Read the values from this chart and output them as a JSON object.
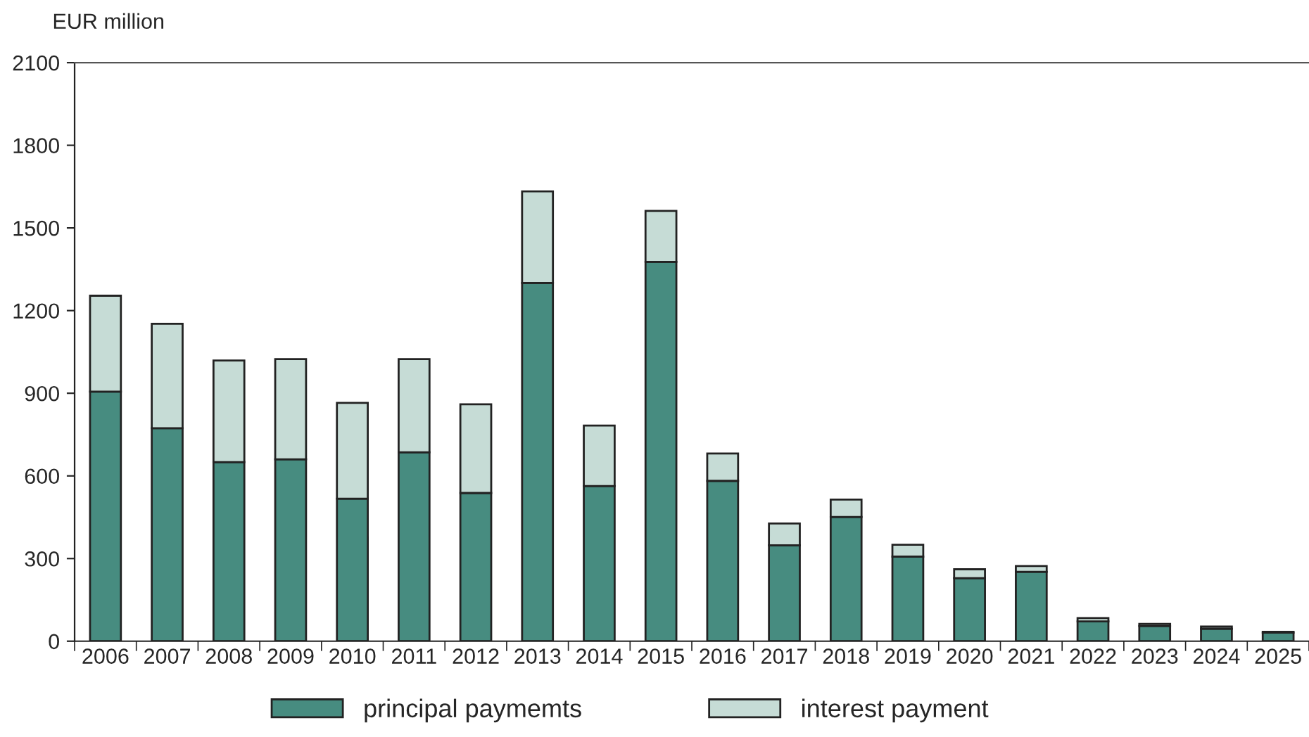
{
  "chart_data": {
    "type": "bar",
    "ylabel": "EUR million",
    "stacked": true,
    "categories": [
      "2006",
      "2007",
      "2008",
      "2009",
      "2010",
      "2011",
      "2012",
      "2013",
      "2014",
      "2015",
      "2016",
      "2017",
      "2018",
      "2019",
      "2020",
      "2021",
      "2022",
      "2023",
      "2024",
      "2025"
    ],
    "series": [
      {
        "name": "principal paymemts",
        "color": "#478c80",
        "values": [
          906,
          773,
          650,
          660,
          517,
          686,
          538,
          1300,
          563,
          1377,
          582,
          348,
          451,
          307,
          229,
          252,
          72,
          55,
          45,
          31
        ]
      },
      {
        "name": "interest payment",
        "color": "#c6dcd6",
        "values": [
          348,
          379,
          369,
          364,
          348,
          338,
          322,
          333,
          220,
          185,
          99,
          79,
          63,
          43,
          32,
          21,
          12,
          8,
          8,
          3
        ]
      }
    ],
    "ylim": [
      0,
      2100
    ],
    "yticks": [
      0,
      300,
      600,
      900,
      1200,
      1500,
      1800,
      2100
    ],
    "grid": false,
    "legend": "bottom"
  }
}
